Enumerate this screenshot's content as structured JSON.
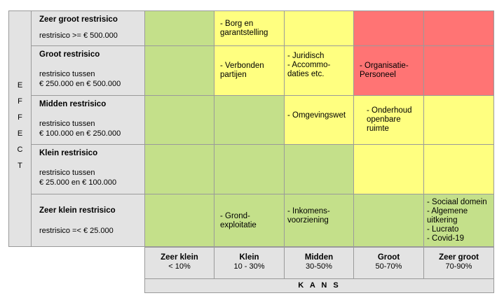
{
  "effect_letters": [
    "E",
    "F",
    "F",
    "E",
    "C",
    "T"
  ],
  "rows": [
    {
      "title": "Zeer groot restrisico",
      "desc": "restrisico >= € 500.000"
    },
    {
      "title": "Groot restrisico",
      "desc": "restrisico tussen\n€ 250.000 en € 500.000"
    },
    {
      "title": "Midden restrisico",
      "desc": "restrisico tussen\n€ 100.000 en € 250.000"
    },
    {
      "title": "Klein restrisico",
      "desc": "restrisico tussen\n€ 25.000 en € 100.000"
    },
    {
      "title": "Zeer klein restrisico",
      "desc": "restrisico  =< € 25.000"
    }
  ],
  "columns": [
    {
      "title": "Zeer klein",
      "range": "< 10%"
    },
    {
      "title": "Klein",
      "range": "10 - 30%"
    },
    {
      "title": "Midden",
      "range": "30-50%"
    },
    {
      "title": "Groot",
      "range": "50-70%"
    },
    {
      "title": "Zeer groot",
      "range": "70-90%"
    }
  ],
  "axis_label": "K A N S",
  "grid_colors": [
    [
      "green",
      "yellow",
      "yellow",
      "red",
      "red"
    ],
    [
      "green",
      "yellow",
      "yellow",
      "red",
      "red"
    ],
    [
      "green",
      "green",
      "yellow",
      "yellow",
      "yellow"
    ],
    [
      "green",
      "green",
      "green",
      "yellow",
      "yellow"
    ],
    [
      "green",
      "green",
      "green",
      "green",
      "green"
    ]
  ],
  "palette": {
    "green": "#c4e08a",
    "yellow": "#ffff80",
    "red": "#ff7474",
    "gray": "#e3e3e3"
  },
  "cell_texts": {
    "r0c1": "- Borg en\n  garantstelling",
    "r1c1": "- Verbonden\n  partijen",
    "r1c2": "- Juridisch\n- Accommo-\n  daties etc.",
    "r1c3": "- Organisatie-\n  Personeel",
    "r2c2": "- Omgevingswet",
    "r2c3": "- Onderhoud\n  openbare\n  ruimte",
    "r4c1": "- Grond-\n  exploitatie",
    "r4c2": "- Inkomens-\n  voorziening",
    "r4c4": "- Sociaal domein\n- Algemene\n  uitkering\n- Lucrato\n- Covid-19"
  }
}
